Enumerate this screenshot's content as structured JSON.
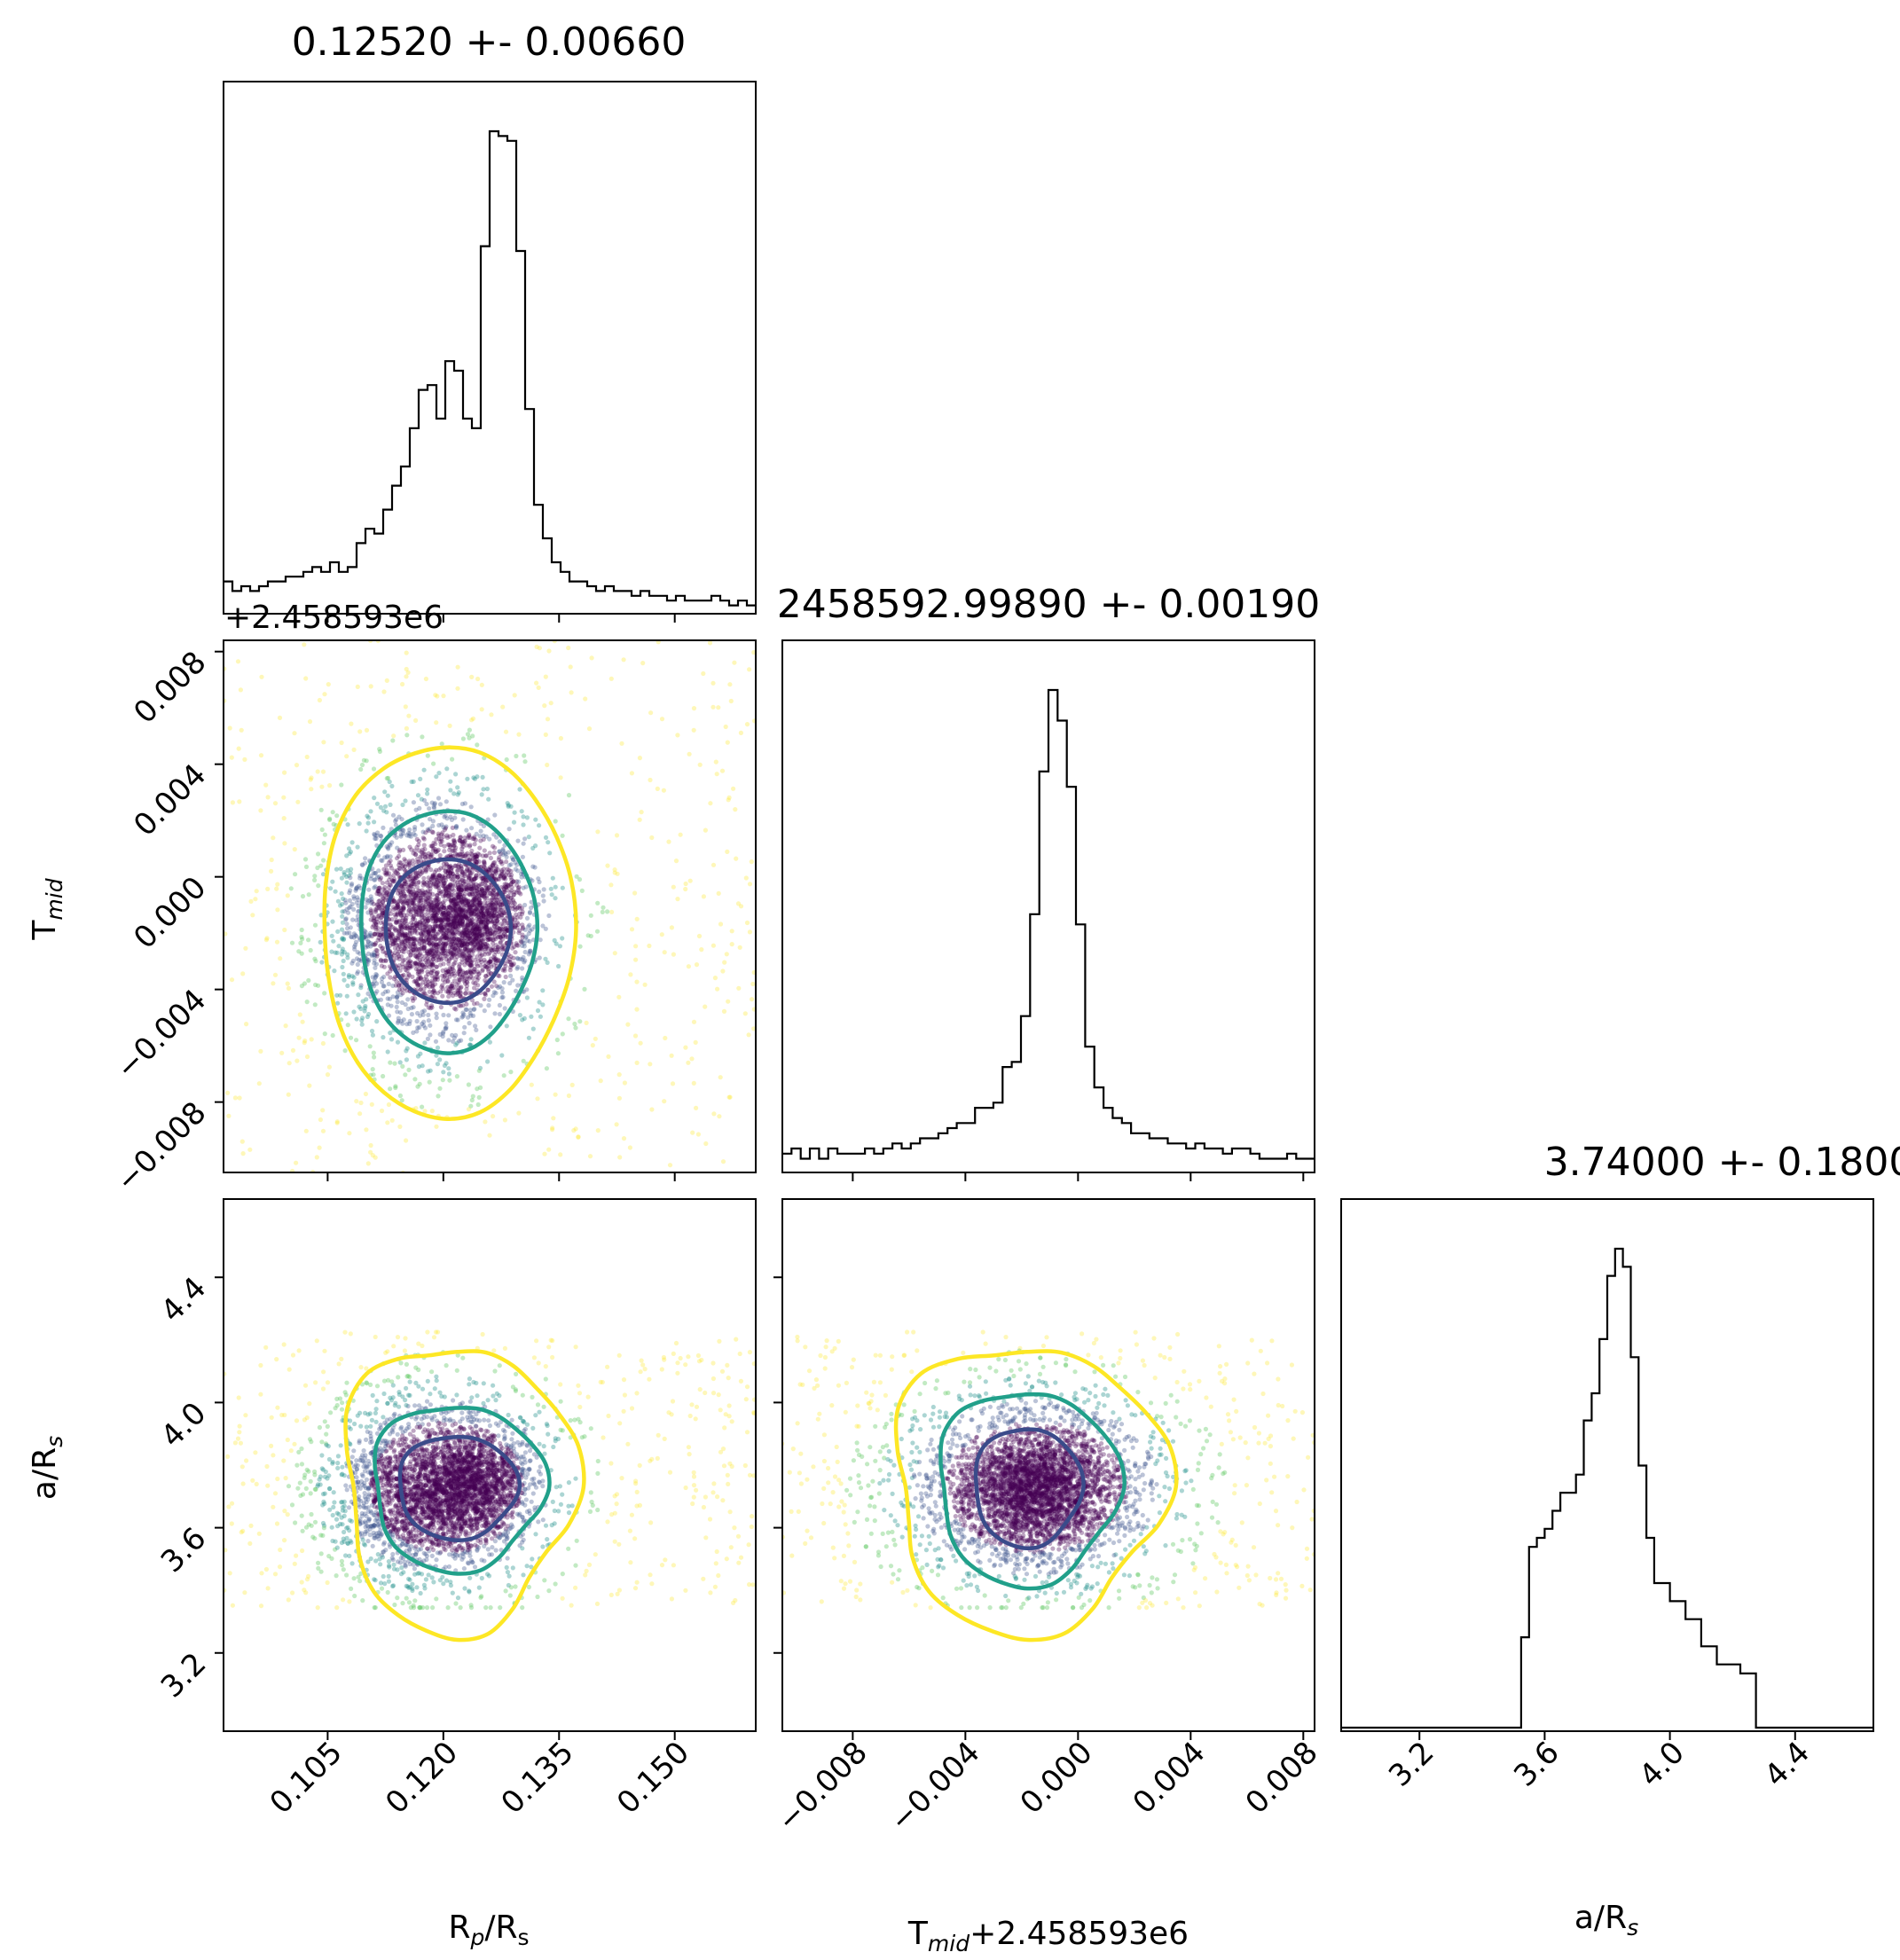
{
  "chart_data": {
    "type": "corner",
    "parameters": [
      {
        "label_main": "R",
        "label_sub": "p",
        "label_mid": "/R",
        "label_sub2": "s",
        "range": [
          0.0915,
          0.1605
        ],
        "ticks": [
          0.105,
          0.12,
          0.135,
          0.15
        ],
        "tick_labels": [
          "0.105",
          "0.120",
          "0.135",
          "0.150"
        ]
      },
      {
        "label_main": "T",
        "label_sub": "mid",
        "offset_text": "+2.458593e6",
        "range": [
          -0.0105,
          0.0084
        ],
        "ticks": [
          -0.008,
          -0.004,
          0.0,
          0.004,
          0.008
        ],
        "tick_labels": [
          "−0.008",
          "−0.004",
          "0.000",
          "0.004",
          "0.008"
        ]
      },
      {
        "label_main": "a/R",
        "label_sub": "s",
        "range": [
          2.95,
          4.65
        ],
        "ticks": [
          3.2,
          3.6,
          4.0,
          4.4
        ],
        "tick_labels": [
          "3.2",
          "3.6",
          "4.0",
          "4.4"
        ]
      }
    ],
    "titles": [
      "0.12520 +- 0.00660",
      "2458592.99890 +- 0.00190",
      "3.74000 +- 0.18000"
    ],
    "offset_text": "+2.458593e6",
    "x_axis_labels": {
      "rp": {
        "main": "R",
        "sub": "p",
        "mid": "/R",
        "sub2": "s"
      },
      "tmid": {
        "main": "T",
        "sub": "mid",
        "tail": "+2.458593e6"
      },
      "ars": {
        "main": "a/R",
        "sub": "s"
      }
    },
    "y_axis_labels": {
      "tmid": {
        "main": "T",
        "sub": "mid"
      },
      "ars": {
        "main": "a/R",
        "sub": "s"
      }
    },
    "histograms": [
      {
        "parameter": "Rp/Rs",
        "range": [
          0.0915,
          0.1605
        ],
        "counts": [
          6,
          4,
          5,
          4,
          5,
          6,
          6,
          7,
          7,
          8,
          9,
          8,
          10,
          8,
          9,
          14,
          17,
          16,
          21,
          26,
          30,
          38,
          46,
          47,
          40,
          52,
          50,
          40,
          38,
          76,
          100,
          99,
          98,
          75,
          42,
          22,
          15,
          10,
          8,
          6,
          6,
          5,
          4,
          5,
          4,
          4,
          3,
          4,
          3,
          3,
          2,
          3,
          2,
          2,
          2,
          3,
          2,
          1,
          2,
          1
        ]
      },
      {
        "parameter": "Tmid",
        "range": [
          -0.0105,
          0.0084
        ],
        "counts": [
          3,
          4,
          2,
          4,
          2,
          4,
          3,
          3,
          3,
          4,
          3,
          4,
          5,
          4,
          5,
          6,
          6,
          7,
          8,
          9,
          9,
          12,
          12,
          13,
          20,
          21,
          30,
          50,
          78,
          94,
          88,
          75,
          48,
          24,
          16,
          12,
          10,
          9,
          7,
          7,
          6,
          6,
          5,
          5,
          4,
          5,
          4,
          4,
          3,
          4,
          4,
          3,
          2,
          2,
          2,
          3,
          2,
          2
        ]
      },
      {
        "parameter": "a/Rs",
        "range": [
          2.95,
          4.65
        ],
        "counts": [
          0,
          0,
          0,
          0,
          0,
          0,
          0,
          0,
          0,
          0,
          0,
          0,
          0,
          0,
          0,
          0,
          0,
          0,
          0,
          0,
          0,
          0,
          0,
          20,
          40,
          42,
          44,
          48,
          52,
          52,
          56,
          68,
          74,
          86,
          100,
          106,
          102,
          82,
          58,
          42,
          32,
          32,
          28,
          28,
          24,
          24,
          18,
          18,
          14,
          14,
          14,
          12,
          12,
          0,
          0,
          0,
          0,
          0,
          0,
          0,
          0,
          0,
          0,
          0,
          0,
          0,
          0,
          0
        ]
      }
    ],
    "scatter_colormap": "viridis",
    "levels": [
      "inner",
      "middle",
      "outer"
    ],
    "contour_colors": [
      "#3a4b8a",
      "#21a08a",
      "#fde725"
    ]
  }
}
